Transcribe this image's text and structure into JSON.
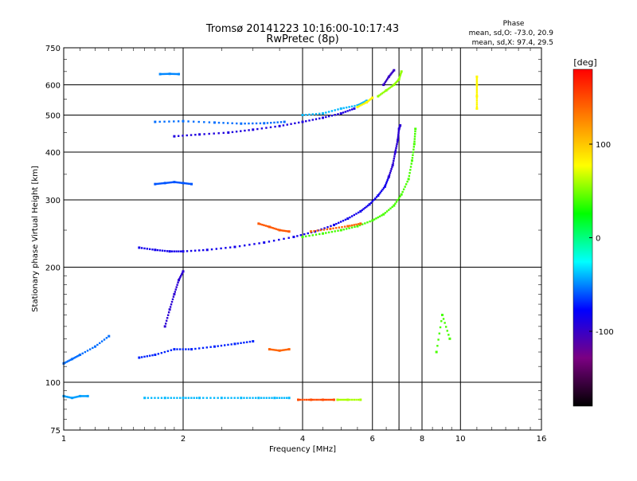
{
  "chart_data": {
    "type": "scatter",
    "title": "Tromsø 20141223 10:16:00-10:17:43",
    "subtitle": "RwPretec (8p)",
    "xlabel": "Frequency [MHz]",
    "ylabel": "Stationary phase Virtual Height [km]",
    "x_scale": "log",
    "y_scale": "log",
    "xlim": [
      1,
      16
    ],
    "ylim": [
      75,
      750
    ],
    "x_ticks": [
      1,
      2,
      4,
      6,
      8,
      10,
      16
    ],
    "x_tick_labels": [
      "1",
      "2",
      "4",
      "6",
      "8",
      "10",
      "16"
    ],
    "y_ticks": [
      75,
      100,
      200,
      300,
      400,
      500,
      600,
      750
    ],
    "y_tick_labels": [
      "75",
      "100",
      "200",
      "300",
      "400",
      "500",
      "600",
      "750"
    ],
    "major_gridlines_x": [
      2,
      4,
      6,
      8,
      10
    ],
    "major_gridlines_y": [
      100,
      200,
      300,
      400,
      500,
      600
    ],
    "phase_stats": {
      "heading": "Phase",
      "line1": "mean, sd,O: -73.0, 20.9",
      "line2": "mean, sd,X:  97.4, 29.5"
    },
    "colorbar": {
      "label": "[deg]",
      "range": [
        -180,
        180
      ],
      "ticks": [
        100,
        0,
        -100
      ],
      "tick_labels": [
        "100",
        "0",
        "-100"
      ],
      "colors": [
        "#000000",
        "#7b0082",
        "#0000ff",
        "#00ffff",
        "#00ff00",
        "#ffff00",
        "#ff8000",
        "#ff0000"
      ]
    },
    "traces": [
      {
        "x": [
          1.55,
          1.7,
          1.85,
          2.0,
          2.3,
          2.7,
          3.2,
          3.8,
          4.3,
          4.8,
          5.2,
          5.6,
          5.9,
          6.2,
          6.45,
          6.6
        ],
        "y": [
          225,
          222,
          220,
          220,
          222,
          226,
          232,
          240,
          248,
          258,
          268,
          280,
          292,
          308,
          325,
          345
        ],
        "phase": -85
      },
      {
        "x": [
          6.6,
          6.75,
          6.85,
          6.95,
          7.0,
          7.05
        ],
        "y": [
          345,
          370,
          400,
          430,
          460,
          470
        ],
        "phase": -95
      },
      {
        "x": [
          4.0,
          4.5,
          5.0,
          5.5,
          6.0,
          6.4,
          6.8,
          7.1,
          7.4,
          7.55,
          7.65,
          7.7
        ],
        "y": [
          240,
          245,
          250,
          256,
          265,
          275,
          290,
          310,
          340,
          380,
          420,
          460
        ],
        "phase": 40
      },
      {
        "x": [
          4.2,
          4.7,
          5.2,
          5.6
        ],
        "y": [
          248,
          252,
          256,
          260
        ],
        "phase": 140
      },
      {
        "x": [
          3.1,
          3.3,
          3.5,
          3.7
        ],
        "y": [
          260,
          255,
          250,
          248
        ],
        "phase": 145
      },
      {
        "x": [
          1.9,
          2.2,
          2.6,
          3.0,
          3.5,
          4.0,
          4.5,
          5.0,
          5.4
        ],
        "y": [
          440,
          445,
          450,
          458,
          468,
          480,
          492,
          505,
          520
        ],
        "phase": -90
      },
      {
        "x": [
          1.7,
          2.0,
          2.4,
          2.8,
          3.2,
          3.6
        ],
        "y": [
          480,
          482,
          478,
          475,
          476,
          480
        ],
        "phase": -55
      },
      {
        "x": [
          4.0,
          4.5,
          5.0,
          5.5,
          5.8
        ],
        "y": [
          500,
          505,
          520,
          530,
          545
        ],
        "phase": -40
      },
      {
        "x": [
          5.5,
          5.8,
          6.0
        ],
        "y": [
          525,
          540,
          555
        ],
        "phase": 80
      },
      {
        "x": [
          6.2,
          6.5,
          6.8,
          7.0,
          7.1
        ],
        "y": [
          560,
          580,
          600,
          620,
          650
        ],
        "phase": 55
      },
      {
        "x": [
          6.4,
          6.6,
          6.8
        ],
        "y": [
          600,
          630,
          655
        ],
        "phase": -100
      },
      {
        "x": [
          1.7,
          1.8,
          1.9,
          2.0,
          2.1
        ],
        "y": [
          330,
          332,
          334,
          332,
          330
        ],
        "phase": -60
      },
      {
        "x": [
          1.75,
          1.85,
          1.95
        ],
        "y": [
          640,
          641,
          640
        ],
        "phase": -50
      },
      {
        "x": [
          1.0,
          1.05,
          1.1,
          1.2,
          1.3
        ],
        "y": [
          112,
          115,
          118,
          124,
          132
        ],
        "phase": -55
      },
      {
        "x": [
          1.55,
          1.7,
          1.9,
          2.1,
          2.4,
          2.7,
          3.0
        ],
        "y": [
          116,
          118,
          122,
          122,
          124,
          126,
          128
        ],
        "phase": -70
      },
      {
        "x": [
          1.8,
          1.85,
          1.9,
          1.95,
          2.0
        ],
        "y": [
          140,
          155,
          170,
          185,
          195
        ],
        "phase": -95
      },
      {
        "x": [
          3.3,
          3.5,
          3.7
        ],
        "y": [
          122,
          121,
          122
        ],
        "phase": 140
      },
      {
        "x": [
          1.0,
          1.05,
          1.1,
          1.15
        ],
        "y": [
          92,
          91,
          92,
          92
        ],
        "phase": -45
      },
      {
        "x": [
          1.6,
          1.8,
          2.0,
          2.2,
          2.5,
          2.8,
          3.1,
          3.4,
          3.7
        ],
        "y": [
          91,
          91,
          91,
          91,
          91,
          91,
          91,
          91,
          91
        ],
        "phase": -40
      },
      {
        "x": [
          3.9,
          4.2,
          4.5,
          4.8
        ],
        "y": [
          90,
          90,
          90,
          90
        ],
        "phase": 150
      },
      {
        "x": [
          4.9,
          5.2,
          5.6
        ],
        "y": [
          90,
          90,
          90
        ],
        "phase": 60
      },
      {
        "x": [
          11.0,
          11.0,
          11.0,
          11.0
        ],
        "y": [
          520,
          560,
          600,
          630
        ],
        "phase": 80
      },
      {
        "x": [
          8.7,
          9.0,
          9.4
        ],
        "y": [
          120,
          150,
          130
        ],
        "phase": 40
      }
    ]
  }
}
